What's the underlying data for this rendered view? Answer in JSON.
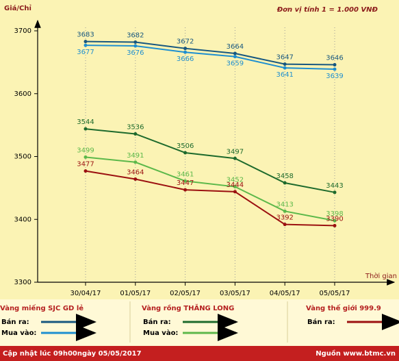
{
  "chart_data": {
    "type": "line",
    "y_label": "Giá/Chỉ",
    "unit_note": "Đơn vị tính 1 = 1.000 VNĐ",
    "x_label": "Thời gian",
    "categories": [
      "30/04/17",
      "01/05/17",
      "02/05/17",
      "03/05/17",
      "04/05/17",
      "05/05/17"
    ],
    "ylim": [
      3300,
      3700
    ],
    "yticks": [
      3300,
      3400,
      3500,
      3600,
      3700
    ],
    "legend_groups": [
      "Vàng miếng SJC GD lẻ",
      "Vàng rồng THĂNG LONG",
      "Vàng thế giới 999.9"
    ],
    "series": [
      {
        "name": "Bán ra:",
        "group": 0,
        "color": "#17577f",
        "label_position": "above",
        "values": [
          3683,
          3682,
          3672,
          3664,
          3647,
          3646
        ]
      },
      {
        "name": "Mua vào:",
        "group": 0,
        "color": "#1e8fd0",
        "label_position": "below",
        "values": [
          3677,
          3676,
          3666,
          3659,
          3641,
          3639
        ]
      },
      {
        "name": "Bán ra:",
        "group": 1,
        "color": "#1d6a2c",
        "label_position": "above",
        "values": [
          3544,
          3536,
          3506,
          3497,
          3458,
          3443
        ]
      },
      {
        "name": "Mua vào:",
        "group": 1,
        "color": "#5cb84a",
        "label_position": "above",
        "values": [
          3499,
          3491,
          3461,
          3452,
          3413,
          3398
        ]
      },
      {
        "name": "Bán ra:",
        "group": 2,
        "color": "#9b1010",
        "label_position": "above",
        "values": [
          3477,
          3464,
          3447,
          3444,
          3392,
          3390
        ]
      }
    ],
    "footer_left": "Cập nhật lúc 09h00ngày 05/05/2017",
    "footer_right": "Nguồn www.btmc.vn"
  }
}
